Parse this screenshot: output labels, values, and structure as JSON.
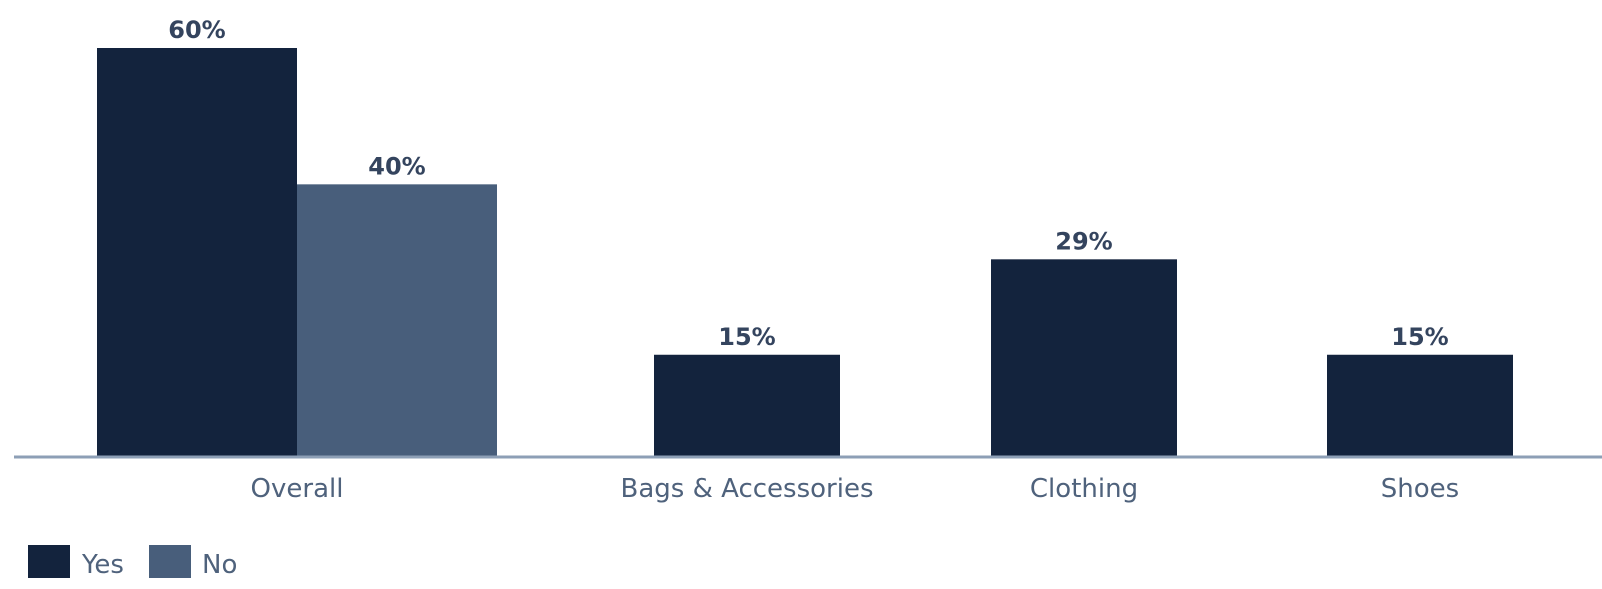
{
  "chart_data": {
    "type": "bar",
    "title": "",
    "xlabel": "",
    "ylabel": "",
    "ylim": [
      0,
      60
    ],
    "grid": false,
    "legend_position": "bottom-left",
    "categories": [
      "Overall",
      "Bags & Accessories",
      "Clothing",
      "Shoes"
    ],
    "series": [
      {
        "name": "Yes",
        "color": "#13233d",
        "values": [
          60,
          15,
          29,
          15
        ],
        "labels": [
          "60%",
          "15%",
          "29%",
          "15%"
        ]
      },
      {
        "name": "No",
        "color": "#485e7b",
        "values": [
          40,
          null,
          null,
          null
        ],
        "labels": [
          "40%",
          null,
          null,
          null
        ]
      }
    ]
  },
  "colors": {
    "yes": "#13233d",
    "no": "#485e7b",
    "axis": "#8d9fb6",
    "value_text": "#34445e",
    "category_text": "#4f627c"
  }
}
